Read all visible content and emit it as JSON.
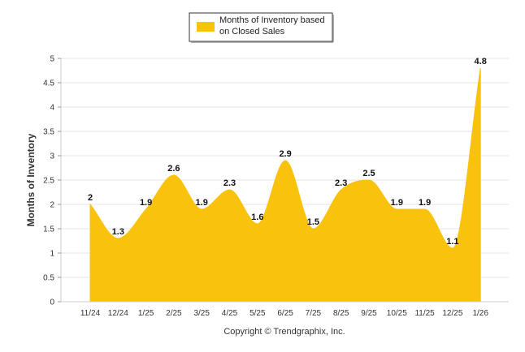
{
  "chart_data": {
    "type": "area",
    "categories": [
      "11/24",
      "12/24",
      "1/25",
      "2/25",
      "3/25",
      "4/25",
      "5/25",
      "6/25",
      "7/25",
      "8/25",
      "9/25",
      "10/25",
      "11/25",
      "12/25",
      "1/26"
    ],
    "series": [
      {
        "name": "Months of Inventory based on Closed Sales",
        "name_lines": [
          "Months of Inventory based",
          "on Closed Sales"
        ],
        "values": [
          2,
          1.3,
          1.9,
          2.6,
          1.9,
          2.3,
          1.6,
          2.9,
          1.5,
          2.3,
          2.5,
          1.9,
          1.9,
          1.1,
          4.8
        ],
        "color": "#F9C20C"
      }
    ],
    "data_labels": [
      "2",
      "1.3",
      "1.9",
      "2.6",
      "1.9",
      "2.3",
      "1.6",
      "2.9",
      "1.5",
      "2.3",
      "2.5",
      "1.9",
      "1.9",
      "1.1",
      "4.8"
    ],
    "ylabel": "Months of Inventory",
    "xlabel": "",
    "ylim": [
      0,
      5
    ],
    "yticks": [
      0,
      0.5,
      1,
      1.5,
      2,
      2.5,
      3,
      3.5,
      4,
      4.5,
      5
    ],
    "ytick_labels": [
      "0",
      "0.5",
      "1",
      "1.5",
      "2",
      "2.5",
      "3",
      "3.5",
      "4",
      "4.5",
      "5"
    ],
    "grid": true,
    "legend_position": "top-center"
  },
  "footer": {
    "copyright": "Copyright © Trendgraphix, Inc."
  },
  "colors": {
    "area": "#F9C20C",
    "grid": "#e6e6e6",
    "legend_border": "#333333"
  }
}
